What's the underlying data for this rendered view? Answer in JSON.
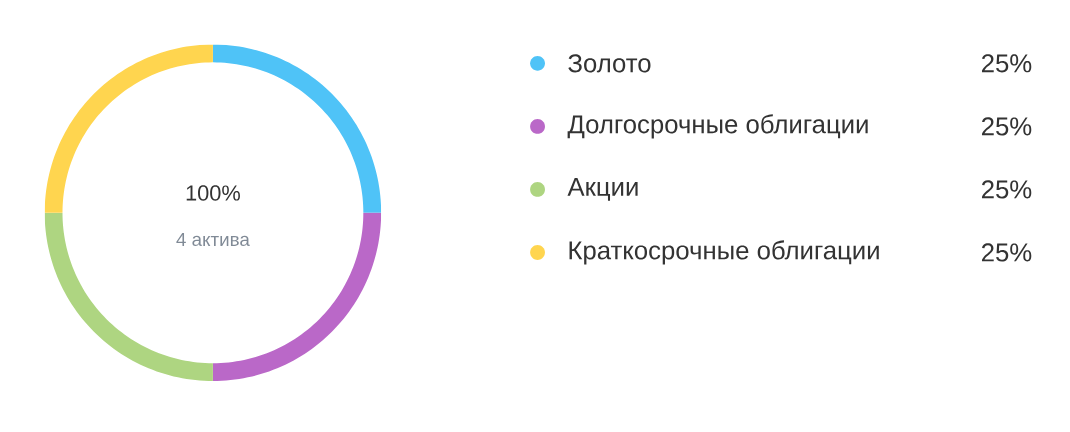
{
  "chart_data": {
    "type": "donut",
    "categories": [
      "Золото",
      "Долгосрочные облигации",
      "Акции",
      "Краткосрочные облигации"
    ],
    "values": [
      25,
      25,
      25,
      25
    ],
    "value_labels": [
      "25%",
      "25%",
      "25%",
      "25%"
    ],
    "colors": [
      "#4fc3f7",
      "#ba68c8",
      "#aed581",
      "#ffd54f"
    ],
    "annotations": [
      "100%",
      "4 актива"
    ],
    "legend": "right"
  }
}
